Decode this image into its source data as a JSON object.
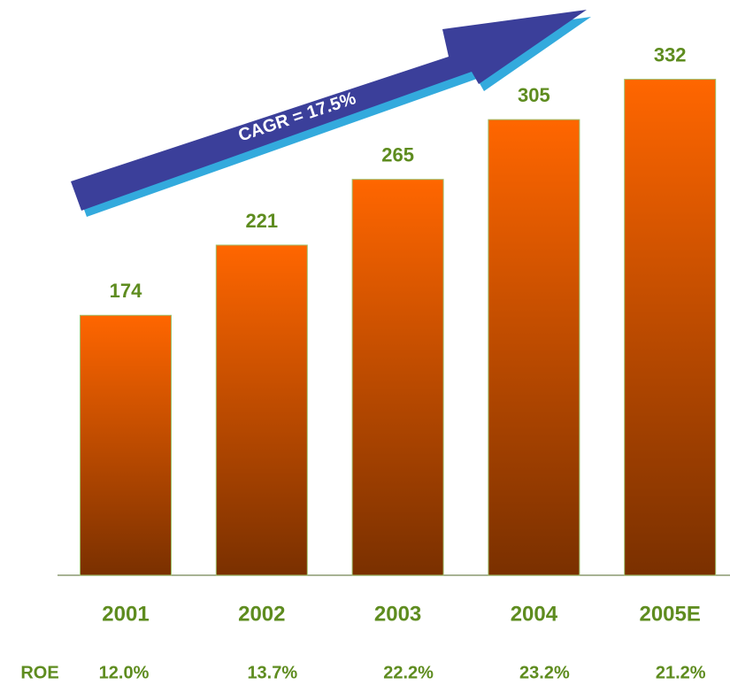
{
  "chart_data": {
    "type": "bar",
    "categories": [
      "2001",
      "2002",
      "2003",
      "2004",
      "2005E"
    ],
    "values": [
      174,
      221,
      265,
      305,
      332
    ],
    "color": "#ff6600",
    "annotation": "CAGR = 17.5%",
    "roe": {
      "name": "ROE",
      "values": [
        12.0,
        13.7,
        22.2,
        23.2,
        21.2
      ],
      "value_labels": [
        "12.0%",
        "13.7%",
        "22.2%",
        "23.2%",
        "21.2%"
      ]
    }
  }
}
